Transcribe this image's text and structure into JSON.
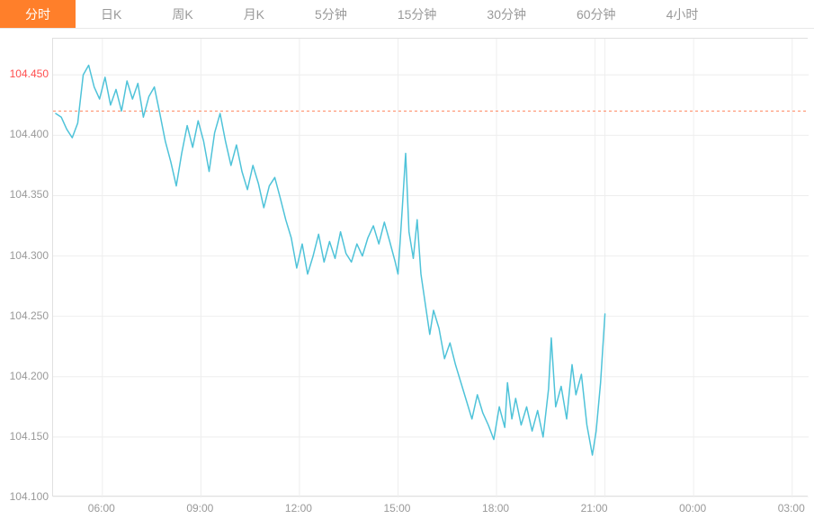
{
  "tabs": {
    "items": [
      {
        "label": "分时",
        "active": true
      },
      {
        "label": "日K",
        "active": false
      },
      {
        "label": "周K",
        "active": false
      },
      {
        "label": "月K",
        "active": false
      },
      {
        "label": "5分钟",
        "active": false
      },
      {
        "label": "15分钟",
        "active": false
      },
      {
        "label": "30分钟",
        "active": false
      },
      {
        "label": "60分钟",
        "active": false
      },
      {
        "label": "4小时",
        "active": false
      }
    ],
    "active_bg": "#ff7f2a",
    "active_color": "#ffffff",
    "inactive_color": "#999999",
    "fontsize": 14
  },
  "chart": {
    "type": "line",
    "background_color": "#ffffff",
    "grid_color": "#eeeeee",
    "border_color": "#e0e0e0",
    "line_color": "#4fc3d9",
    "line_width": 1.5,
    "reference_line": {
      "value": 104.42,
      "color": "#ff8a65",
      "dash": "3,3",
      "width": 1
    },
    "y_axis": {
      "min": 104.1,
      "max": 104.48,
      "ticks": [
        104.1,
        104.15,
        104.2,
        104.25,
        104.3,
        104.35,
        104.4,
        104.45
      ],
      "tick_labels": [
        "104.100",
        "104.150",
        "104.200",
        "104.250",
        "104.300",
        "104.350",
        "104.400",
        "104.450"
      ],
      "highlight_tick": 104.45,
      "label_color": "#999999",
      "highlight_color": "#ff4d4d",
      "fontsize": 12
    },
    "x_axis": {
      "min_minutes": 270,
      "max_minutes": 1650,
      "ticks_minutes": [
        360,
        540,
        720,
        900,
        1080,
        1260,
        1440,
        1620
      ],
      "tick_labels": [
        "06:00",
        "09:00",
        "12:00",
        "15:00",
        "18:00",
        "21:00",
        "00:00",
        "03:00"
      ],
      "label_color": "#999999",
      "fontsize": 12,
      "vline_end_minutes": 1278
    },
    "series": [
      {
        "t": 275,
        "v": 104.418
      },
      {
        "t": 285,
        "v": 104.415
      },
      {
        "t": 295,
        "v": 104.405
      },
      {
        "t": 305,
        "v": 104.398
      },
      {
        "t": 315,
        "v": 104.41
      },
      {
        "t": 325,
        "v": 104.45
      },
      {
        "t": 335,
        "v": 104.458
      },
      {
        "t": 345,
        "v": 104.44
      },
      {
        "t": 355,
        "v": 104.43
      },
      {
        "t": 365,
        "v": 104.448
      },
      {
        "t": 375,
        "v": 104.425
      },
      {
        "t": 385,
        "v": 104.438
      },
      {
        "t": 395,
        "v": 104.42
      },
      {
        "t": 405,
        "v": 104.445
      },
      {
        "t": 415,
        "v": 104.43
      },
      {
        "t": 425,
        "v": 104.443
      },
      {
        "t": 435,
        "v": 104.415
      },
      {
        "t": 445,
        "v": 104.432
      },
      {
        "t": 455,
        "v": 104.44
      },
      {
        "t": 465,
        "v": 104.418
      },
      {
        "t": 475,
        "v": 104.395
      },
      {
        "t": 485,
        "v": 104.378
      },
      {
        "t": 495,
        "v": 104.358
      },
      {
        "t": 505,
        "v": 104.385
      },
      {
        "t": 515,
        "v": 104.408
      },
      {
        "t": 525,
        "v": 104.39
      },
      {
        "t": 535,
        "v": 104.412
      },
      {
        "t": 545,
        "v": 104.395
      },
      {
        "t": 555,
        "v": 104.37
      },
      {
        "t": 565,
        "v": 104.402
      },
      {
        "t": 575,
        "v": 104.418
      },
      {
        "t": 585,
        "v": 104.395
      },
      {
        "t": 595,
        "v": 104.375
      },
      {
        "t": 605,
        "v": 104.392
      },
      {
        "t": 615,
        "v": 104.37
      },
      {
        "t": 625,
        "v": 104.355
      },
      {
        "t": 635,
        "v": 104.375
      },
      {
        "t": 645,
        "v": 104.36
      },
      {
        "t": 655,
        "v": 104.34
      },
      {
        "t": 665,
        "v": 104.358
      },
      {
        "t": 675,
        "v": 104.365
      },
      {
        "t": 685,
        "v": 104.348
      },
      {
        "t": 695,
        "v": 104.33
      },
      {
        "t": 705,
        "v": 104.315
      },
      {
        "t": 715,
        "v": 104.29
      },
      {
        "t": 725,
        "v": 104.31
      },
      {
        "t": 735,
        "v": 104.285
      },
      {
        "t": 745,
        "v": 104.3
      },
      {
        "t": 755,
        "v": 104.318
      },
      {
        "t": 765,
        "v": 104.295
      },
      {
        "t": 775,
        "v": 104.312
      },
      {
        "t": 785,
        "v": 104.298
      },
      {
        "t": 795,
        "v": 104.32
      },
      {
        "t": 805,
        "v": 104.302
      },
      {
        "t": 815,
        "v": 104.295
      },
      {
        "t": 825,
        "v": 104.31
      },
      {
        "t": 835,
        "v": 104.3
      },
      {
        "t": 845,
        "v": 104.315
      },
      {
        "t": 855,
        "v": 104.325
      },
      {
        "t": 865,
        "v": 104.31
      },
      {
        "t": 875,
        "v": 104.328
      },
      {
        "t": 885,
        "v": 104.312
      },
      {
        "t": 895,
        "v": 104.295
      },
      {
        "t": 900,
        "v": 104.285
      },
      {
        "t": 908,
        "v": 104.34
      },
      {
        "t": 914,
        "v": 104.385
      },
      {
        "t": 920,
        "v": 104.32
      },
      {
        "t": 928,
        "v": 104.298
      },
      {
        "t": 935,
        "v": 104.33
      },
      {
        "t": 942,
        "v": 104.285
      },
      {
        "t": 950,
        "v": 104.26
      },
      {
        "t": 958,
        "v": 104.235
      },
      {
        "t": 965,
        "v": 104.255
      },
      {
        "t": 975,
        "v": 104.24
      },
      {
        "t": 985,
        "v": 104.215
      },
      {
        "t": 995,
        "v": 104.228
      },
      {
        "t": 1005,
        "v": 104.21
      },
      {
        "t": 1015,
        "v": 104.195
      },
      {
        "t": 1025,
        "v": 104.18
      },
      {
        "t": 1035,
        "v": 104.165
      },
      {
        "t": 1045,
        "v": 104.185
      },
      {
        "t": 1055,
        "v": 104.17
      },
      {
        "t": 1065,
        "v": 104.16
      },
      {
        "t": 1075,
        "v": 104.148
      },
      {
        "t": 1085,
        "v": 104.175
      },
      {
        "t": 1095,
        "v": 104.158
      },
      {
        "t": 1100,
        "v": 104.195
      },
      {
        "t": 1108,
        "v": 104.165
      },
      {
        "t": 1115,
        "v": 104.182
      },
      {
        "t": 1125,
        "v": 104.16
      },
      {
        "t": 1135,
        "v": 104.175
      },
      {
        "t": 1145,
        "v": 104.155
      },
      {
        "t": 1155,
        "v": 104.172
      },
      {
        "t": 1165,
        "v": 104.15
      },
      {
        "t": 1175,
        "v": 104.19
      },
      {
        "t": 1180,
        "v": 104.232
      },
      {
        "t": 1188,
        "v": 104.175
      },
      {
        "t": 1198,
        "v": 104.192
      },
      {
        "t": 1208,
        "v": 104.165
      },
      {
        "t": 1218,
        "v": 104.21
      },
      {
        "t": 1225,
        "v": 104.185
      },
      {
        "t": 1235,
        "v": 104.202
      },
      {
        "t": 1245,
        "v": 104.16
      },
      {
        "t": 1255,
        "v": 104.135
      },
      {
        "t": 1262,
        "v": 104.155
      },
      {
        "t": 1270,
        "v": 104.195
      },
      {
        "t": 1278,
        "v": 104.252
      }
    ]
  }
}
